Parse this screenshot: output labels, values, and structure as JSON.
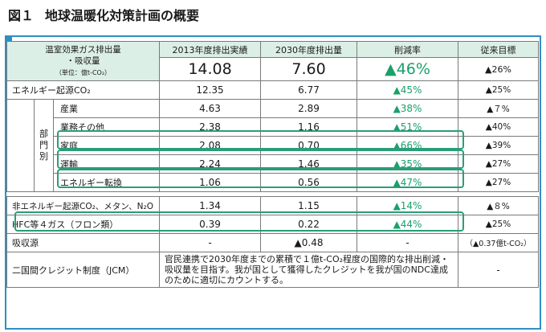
{
  "title": {
    "number": "図１",
    "text": "地球温暖化対策計画の概要"
  },
  "header": {
    "label_line1": "温室効果ガス排出量",
    "label_line2": "・吸収量",
    "label_unit": "（単位：億t-CO₂）",
    "col_2013": "2013年度排出実績",
    "col_2030": "2030年度排出量",
    "col_rate": "削減率",
    "col_prev": "従来目標"
  },
  "total": {
    "v2013": "14.08",
    "v2030": "7.60",
    "rate": "▲46%",
    "prev": "▲26%"
  },
  "rows": [
    {
      "label": "エネルギー起源CO₂",
      "v2013": "12.35",
      "v2030": "6.77",
      "rate": "▲45%",
      "prev": "▲25%"
    },
    {
      "label": "産業",
      "v2013": "4.63",
      "v2030": "2.89",
      "rate": "▲38%",
      "prev": "▲７%"
    },
    {
      "label": "業務その他",
      "v2013": "2.38",
      "v2030": "1.16",
      "rate": "▲51%",
      "prev": "▲40%"
    },
    {
      "label": "家庭",
      "v2013": "2.08",
      "v2030": "0.70",
      "rate": "▲66%",
      "prev": "▲39%"
    },
    {
      "label": "運輸",
      "v2013": "2.24",
      "v2030": "1.46",
      "rate": "▲35%",
      "prev": "▲27%"
    },
    {
      "label": "エネルギー転換",
      "v2013": "1.06",
      "v2030": "0.56",
      "rate": "▲47%",
      "prev": "▲27%"
    },
    {
      "label": "非エネルギー起源CO₂、メタン、N₂O",
      "v2013": "1.34",
      "v2030": "1.15",
      "rate": "▲14%",
      "prev": "▲８%"
    },
    {
      "label": "HFC等４ガス（フロン類）",
      "v2013": "0.39",
      "v2030": "0.22",
      "rate": "▲44%",
      "prev": "▲25%"
    },
    {
      "label": "吸収源",
      "v2013": "-",
      "v2030": "▲0.48",
      "rate": "-",
      "prev": "（▲0.37億t-CO₂）"
    }
  ],
  "sector_label": {
    "c1": "部",
    "c2": "門",
    "c3": "別"
  },
  "jcm": {
    "label": "二国間クレジット制度（JCM）",
    "desc": "官民連携で2030年度までの累積で１億t-CO₂程度の国際的な排出削減・吸収量を目指す。我が国として獲得したクレジットを我が国のNDC達成のために適切にカウントする。",
    "prev": "-"
  }
}
